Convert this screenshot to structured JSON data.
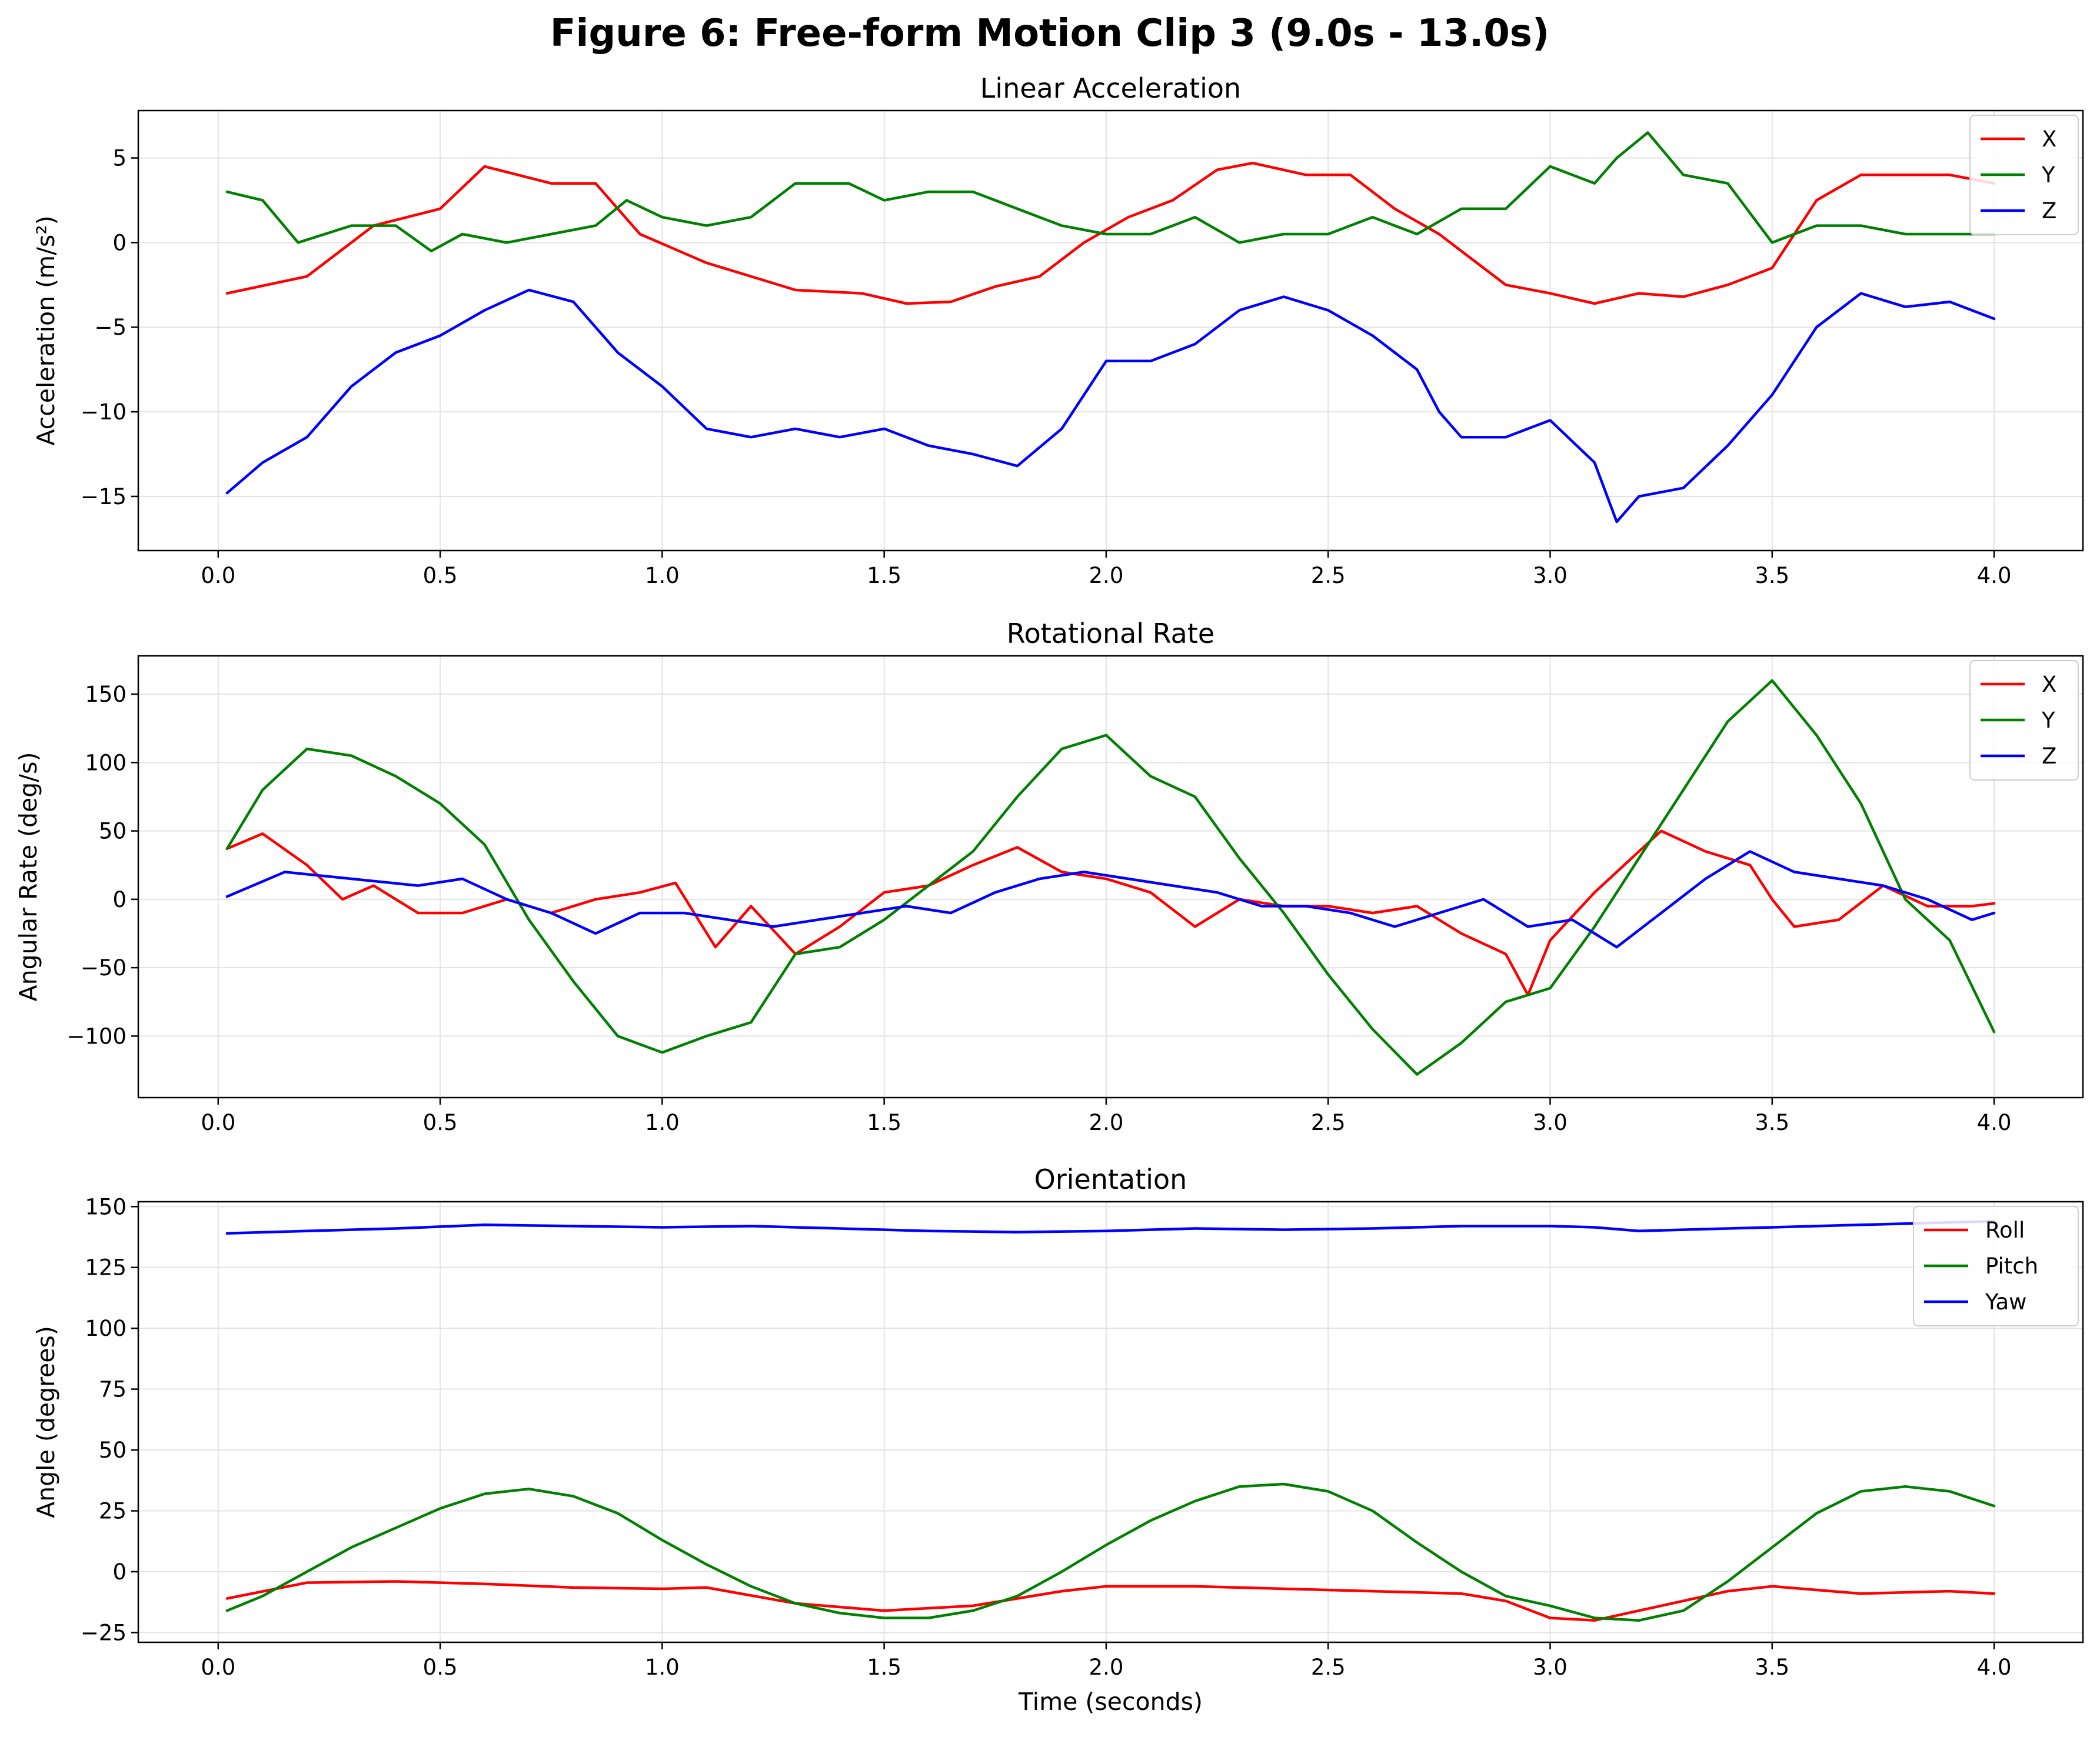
{
  "figure": {
    "title": "Figure 6: Free-form Motion Clip 3 (9.0s - 13.0s)"
  },
  "colors": {
    "red": "#ff0000",
    "green": "#008000",
    "blue": "#0000ff"
  },
  "chart_data": [
    {
      "type": "line",
      "title": "Linear Acceleration",
      "xlabel": "",
      "ylabel": "Acceleration (m/s²)",
      "xlim": [
        -0.18,
        4.2
      ],
      "ylim": [
        -18.2,
        7.8
      ],
      "xticks": [
        0.0,
        0.5,
        1.0,
        1.5,
        2.0,
        2.5,
        3.0,
        3.5,
        4.0
      ],
      "xtick_labels": [
        "0.0",
        "0.5",
        "1.0",
        "1.5",
        "2.0",
        "2.5",
        "3.0",
        "3.5",
        "4.0"
      ],
      "yticks": [
        -15,
        -10,
        -5,
        0,
        5
      ],
      "ytick_labels": [
        "−15",
        "−10",
        "−5",
        "0",
        "5"
      ],
      "grid": true,
      "legend": "top-right",
      "series": [
        {
          "name": "X",
          "color": "#ff0000",
          "x": [
            0.02,
            0.2,
            0.35,
            0.5,
            0.6,
            0.75,
            0.85,
            0.95,
            1.1,
            1.2,
            1.3,
            1.45,
            1.55,
            1.65,
            1.75,
            1.85,
            1.95,
            2.05,
            2.15,
            2.25,
            2.33,
            2.45,
            2.55,
            2.65,
            2.75,
            2.8,
            2.9,
            3.0,
            3.1,
            3.2,
            3.3,
            3.4,
            3.5,
            3.6,
            3.7,
            3.8,
            3.9,
            4.0
          ],
          "y": [
            -3.0,
            -2.0,
            1.0,
            2.0,
            4.5,
            3.5,
            3.5,
            0.5,
            -1.2,
            -2.0,
            -2.8,
            -3.0,
            -3.6,
            -3.5,
            -2.6,
            -2.0,
            0.0,
            1.5,
            2.5,
            4.3,
            4.7,
            4.0,
            4.0,
            2.0,
            0.5,
            -0.5,
            -2.5,
            -3.0,
            -3.6,
            -3.0,
            -3.2,
            -2.5,
            -1.5,
            2.5,
            4.0,
            4.0,
            4.0,
            3.5
          ]
        },
        {
          "name": "Y",
          "color": "#008000",
          "x": [
            0.02,
            0.1,
            0.18,
            0.3,
            0.4,
            0.48,
            0.55,
            0.65,
            0.75,
            0.85,
            0.92,
            1.0,
            1.1,
            1.2,
            1.3,
            1.42,
            1.5,
            1.6,
            1.7,
            1.8,
            1.9,
            2.0,
            2.1,
            2.2,
            2.3,
            2.4,
            2.5,
            2.6,
            2.7,
            2.8,
            2.9,
            3.0,
            3.1,
            3.15,
            3.22,
            3.3,
            3.4,
            3.5,
            3.6,
            3.7,
            3.8,
            3.9,
            4.0
          ],
          "y": [
            3.0,
            2.5,
            0.0,
            1.0,
            1.0,
            -0.5,
            0.5,
            0.0,
            0.5,
            1.0,
            2.5,
            1.5,
            1.0,
            1.5,
            3.5,
            3.5,
            2.5,
            3.0,
            3.0,
            2.0,
            1.0,
            0.5,
            0.5,
            1.5,
            0.0,
            0.5,
            0.5,
            1.5,
            0.5,
            2.0,
            2.0,
            4.5,
            3.5,
            5.0,
            6.5,
            4.0,
            3.5,
            0.0,
            1.0,
            1.0,
            0.5,
            0.5,
            0.5
          ]
        },
        {
          "name": "Z",
          "color": "#0000ff",
          "x": [
            0.02,
            0.1,
            0.2,
            0.3,
            0.4,
            0.5,
            0.6,
            0.7,
            0.8,
            0.9,
            1.0,
            1.1,
            1.2,
            1.3,
            1.4,
            1.5,
            1.6,
            1.7,
            1.8,
            1.9,
            2.0,
            2.1,
            2.2,
            2.3,
            2.4,
            2.5,
            2.6,
            2.7,
            2.75,
            2.8,
            2.9,
            3.0,
            3.1,
            3.15,
            3.2,
            3.3,
            3.4,
            3.5,
            3.6,
            3.7,
            3.8,
            3.9,
            4.0
          ],
          "y": [
            -14.8,
            -13.0,
            -11.5,
            -8.5,
            -6.5,
            -5.5,
            -4.0,
            -2.8,
            -3.5,
            -6.5,
            -8.5,
            -11.0,
            -11.5,
            -11.0,
            -11.5,
            -11.0,
            -12.0,
            -12.5,
            -13.2,
            -11.0,
            -7.0,
            -7.0,
            -6.0,
            -4.0,
            -3.2,
            -4.0,
            -5.5,
            -7.5,
            -10.0,
            -11.5,
            -11.5,
            -10.5,
            -13.0,
            -16.5,
            -15.0,
            -14.5,
            -12.0,
            -9.0,
            -5.0,
            -3.0,
            -3.8,
            -3.5,
            -4.5
          ]
        }
      ]
    },
    {
      "type": "line",
      "title": "Rotational Rate",
      "xlabel": "",
      "ylabel": "Angular Rate (deg/s)",
      "xlim": [
        -0.18,
        4.2
      ],
      "ylim": [
        -145,
        178
      ],
      "xticks": [
        0.0,
        0.5,
        1.0,
        1.5,
        2.0,
        2.5,
        3.0,
        3.5,
        4.0
      ],
      "xtick_labels": [
        "0.0",
        "0.5",
        "1.0",
        "1.5",
        "2.0",
        "2.5",
        "3.0",
        "3.5",
        "4.0"
      ],
      "yticks": [
        -100,
        -50,
        0,
        50,
        100,
        150
      ],
      "ytick_labels": [
        "−100",
        "−50",
        "0",
        "50",
        "100",
        "150"
      ],
      "grid": true,
      "legend": "top-right",
      "series": [
        {
          "name": "X",
          "color": "#ff0000",
          "x": [
            0.02,
            0.1,
            0.2,
            0.28,
            0.35,
            0.45,
            0.55,
            0.65,
            0.75,
            0.85,
            0.95,
            1.03,
            1.12,
            1.2,
            1.3,
            1.4,
            1.5,
            1.6,
            1.7,
            1.8,
            1.9,
            2.0,
            2.1,
            2.2,
            2.3,
            2.4,
            2.5,
            2.6,
            2.7,
            2.8,
            2.9,
            2.95,
            3.0,
            3.1,
            3.2,
            3.25,
            3.35,
            3.45,
            3.5,
            3.55,
            3.65,
            3.75,
            3.85,
            3.95,
            4.0
          ],
          "y": [
            37,
            48,
            25,
            0,
            10,
            -10,
            -10,
            0,
            -10,
            0,
            5,
            12,
            -35,
            -5,
            -40,
            -20,
            5,
            10,
            25,
            38,
            20,
            15,
            5,
            -20,
            0,
            -5,
            -5,
            -10,
            -5,
            -25,
            -40,
            -70,
            -30,
            5,
            35,
            50,
            35,
            25,
            0,
            -20,
            -15,
            10,
            -5,
            -5,
            -3
          ]
        },
        {
          "name": "Y",
          "color": "#008000",
          "x": [
            0.02,
            0.1,
            0.2,
            0.3,
            0.4,
            0.5,
            0.6,
            0.7,
            0.8,
            0.9,
            1.0,
            1.1,
            1.2,
            1.3,
            1.4,
            1.5,
            1.6,
            1.7,
            1.8,
            1.9,
            2.0,
            2.1,
            2.2,
            2.3,
            2.4,
            2.5,
            2.6,
            2.7,
            2.8,
            2.9,
            3.0,
            3.1,
            3.2,
            3.3,
            3.4,
            3.5,
            3.6,
            3.7,
            3.8,
            3.9,
            4.0
          ],
          "y": [
            37,
            80,
            110,
            105,
            90,
            70,
            40,
            -15,
            -60,
            -100,
            -112,
            -100,
            -90,
            -40,
            -35,
            -15,
            10,
            35,
            75,
            110,
            120,
            90,
            75,
            30,
            -10,
            -55,
            -95,
            -128,
            -105,
            -75,
            -65,
            -20,
            30,
            80,
            130,
            160,
            120,
            70,
            0,
            -30,
            -97
          ]
        },
        {
          "name": "Z",
          "color": "#0000ff",
          "x": [
            0.02,
            0.15,
            0.3,
            0.45,
            0.55,
            0.65,
            0.75,
            0.85,
            0.95,
            1.05,
            1.15,
            1.25,
            1.35,
            1.45,
            1.55,
            1.65,
            1.75,
            1.85,
            1.95,
            2.05,
            2.15,
            2.25,
            2.35,
            2.45,
            2.55,
            2.65,
            2.75,
            2.85,
            2.95,
            3.05,
            3.15,
            3.25,
            3.35,
            3.45,
            3.55,
            3.65,
            3.75,
            3.85,
            3.95,
            4.0
          ],
          "y": [
            2,
            20,
            15,
            10,
            15,
            0,
            -10,
            -25,
            -10,
            -10,
            -15,
            -20,
            -15,
            -10,
            -5,
            -10,
            5,
            15,
            20,
            15,
            10,
            5,
            -5,
            -5,
            -10,
            -20,
            -10,
            0,
            -20,
            -15,
            -35,
            -10,
            15,
            35,
            20,
            15,
            10,
            0,
            -15,
            -10
          ]
        }
      ]
    },
    {
      "type": "line",
      "title": "Orientation",
      "xlabel": "Time (seconds)",
      "ylabel": "Angle (degrees)",
      "xlim": [
        -0.18,
        4.2
      ],
      "ylim": [
        -29,
        152
      ],
      "xticks": [
        0.0,
        0.5,
        1.0,
        1.5,
        2.0,
        2.5,
        3.0,
        3.5,
        4.0
      ],
      "xtick_labels": [
        "0.0",
        "0.5",
        "1.0",
        "1.5",
        "2.0",
        "2.5",
        "3.0",
        "3.5",
        "4.0"
      ],
      "yticks": [
        -25,
        0,
        25,
        50,
        75,
        100,
        125,
        150
      ],
      "ytick_labels": [
        "−25",
        "0",
        "25",
        "50",
        "75",
        "100",
        "125",
        "150"
      ],
      "grid": true,
      "legend": "top-right",
      "series": [
        {
          "name": "Roll",
          "color": "#ff0000",
          "x": [
            0.02,
            0.2,
            0.4,
            0.6,
            0.8,
            1.0,
            1.1,
            1.3,
            1.5,
            1.7,
            1.9,
            2.0,
            2.2,
            2.4,
            2.6,
            2.8,
            2.9,
            3.0,
            3.1,
            3.25,
            3.4,
            3.5,
            3.7,
            3.9,
            4.0
          ],
          "y": [
            -11,
            -4.5,
            -4,
            -5,
            -6.5,
            -7,
            -6.5,
            -13,
            -16,
            -14,
            -8,
            -6,
            -6,
            -7,
            -8,
            -9,
            -12,
            -19,
            -20,
            -14,
            -8,
            -6,
            -9,
            -8,
            -9
          ]
        },
        {
          "name": "Pitch",
          "color": "#008000",
          "x": [
            0.02,
            0.1,
            0.2,
            0.3,
            0.4,
            0.5,
            0.6,
            0.7,
            0.8,
            0.9,
            1.0,
            1.1,
            1.2,
            1.3,
            1.4,
            1.5,
            1.6,
            1.7,
            1.8,
            1.9,
            2.0,
            2.1,
            2.2,
            2.3,
            2.4,
            2.5,
            2.6,
            2.7,
            2.8,
            2.9,
            3.0,
            3.1,
            3.2,
            3.3,
            3.4,
            3.5,
            3.6,
            3.7,
            3.8,
            3.9,
            4.0
          ],
          "y": [
            -16,
            -10,
            0,
            10,
            18,
            26,
            32,
            34,
            31,
            24,
            13,
            3,
            -6,
            -13,
            -17,
            -19,
            -19,
            -16,
            -10,
            0,
            11,
            21,
            29,
            35,
            36,
            33,
            25,
            12,
            0,
            -10,
            -14,
            -19,
            -20,
            -16,
            -4,
            10,
            24,
            33,
            35,
            33,
            27
          ]
        },
        {
          "name": "Yaw",
          "color": "#0000ff",
          "x": [
            0.02,
            0.2,
            0.4,
            0.6,
            0.8,
            1.0,
            1.2,
            1.4,
            1.6,
            1.8,
            2.0,
            2.2,
            2.4,
            2.6,
            2.8,
            3.0,
            3.1,
            3.2,
            3.4,
            3.6,
            3.8,
            4.0
          ],
          "y": [
            139,
            140,
            141,
            142.5,
            142,
            141.5,
            142,
            141,
            140,
            139.5,
            140,
            141,
            140.5,
            141,
            142,
            142,
            141.5,
            140,
            141,
            142,
            143,
            144
          ]
        }
      ]
    }
  ]
}
